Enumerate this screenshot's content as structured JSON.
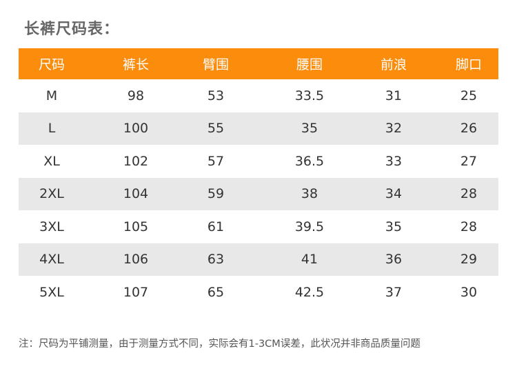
{
  "title": "长裤尺码表：",
  "table": {
    "header": [
      "尺码",
      "裤长",
      "臂围",
      "腰围",
      "前浪",
      "脚口"
    ],
    "rows": [
      [
        "M",
        98,
        53,
        33.5,
        31,
        25
      ],
      [
        "L",
        100,
        55,
        35,
        32,
        26
      ],
      [
        "XL",
        102,
        57,
        36.5,
        33,
        27
      ],
      [
        "2XL",
        104,
        59,
        38,
        34,
        28
      ],
      [
        "3XL",
        105,
        61,
        39.5,
        35,
        28
      ],
      [
        "4XL",
        106,
        63,
        41,
        36,
        29
      ],
      [
        "5XL",
        107,
        65,
        42.5,
        37,
        30
      ]
    ]
  },
  "note": "注：尺码为平铺测量，由于测量方式不同，实际会有1-3CM误差，此状况并非商品质量问题"
}
